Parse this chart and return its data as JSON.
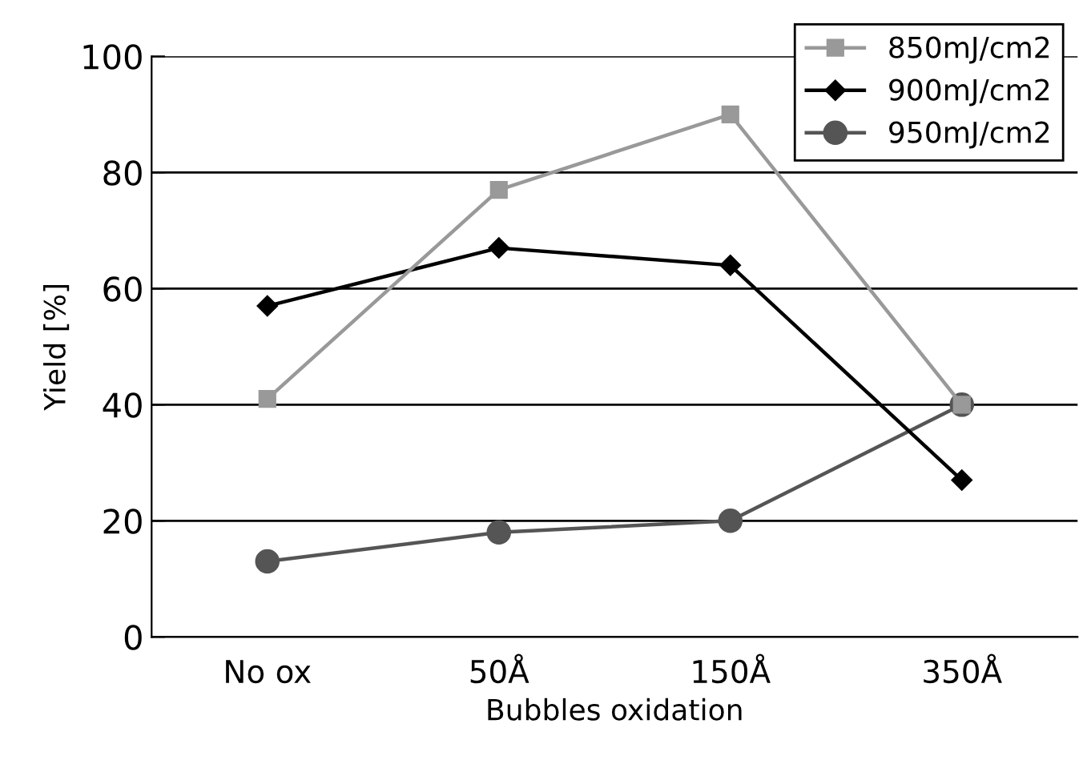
{
  "chart_data": {
    "type": "line",
    "xlabel": "Bubbles oxidation",
    "ylabel": "Yield [%]",
    "categories": [
      "No ox",
      "50Å",
      "150Å",
      "350Å"
    ],
    "series": [
      {
        "name": "850mJ/cm2",
        "color": "#999999",
        "marker": "square",
        "values": [
          41,
          77,
          90,
          40
        ]
      },
      {
        "name": "900mJ/cm2",
        "color": "#000000",
        "marker": "diamond",
        "values": [
          57,
          67,
          64,
          27
        ]
      },
      {
        "name": "950mJ/cm2",
        "color": "#555555",
        "marker": "circle",
        "values": [
          13,
          18,
          20,
          40
        ]
      }
    ],
    "ylim": [
      0,
      100
    ],
    "yticks": [
      0,
      20,
      40,
      60,
      80,
      100
    ],
    "grid": "y",
    "legend": "top right",
    "line_style": "solid"
  }
}
